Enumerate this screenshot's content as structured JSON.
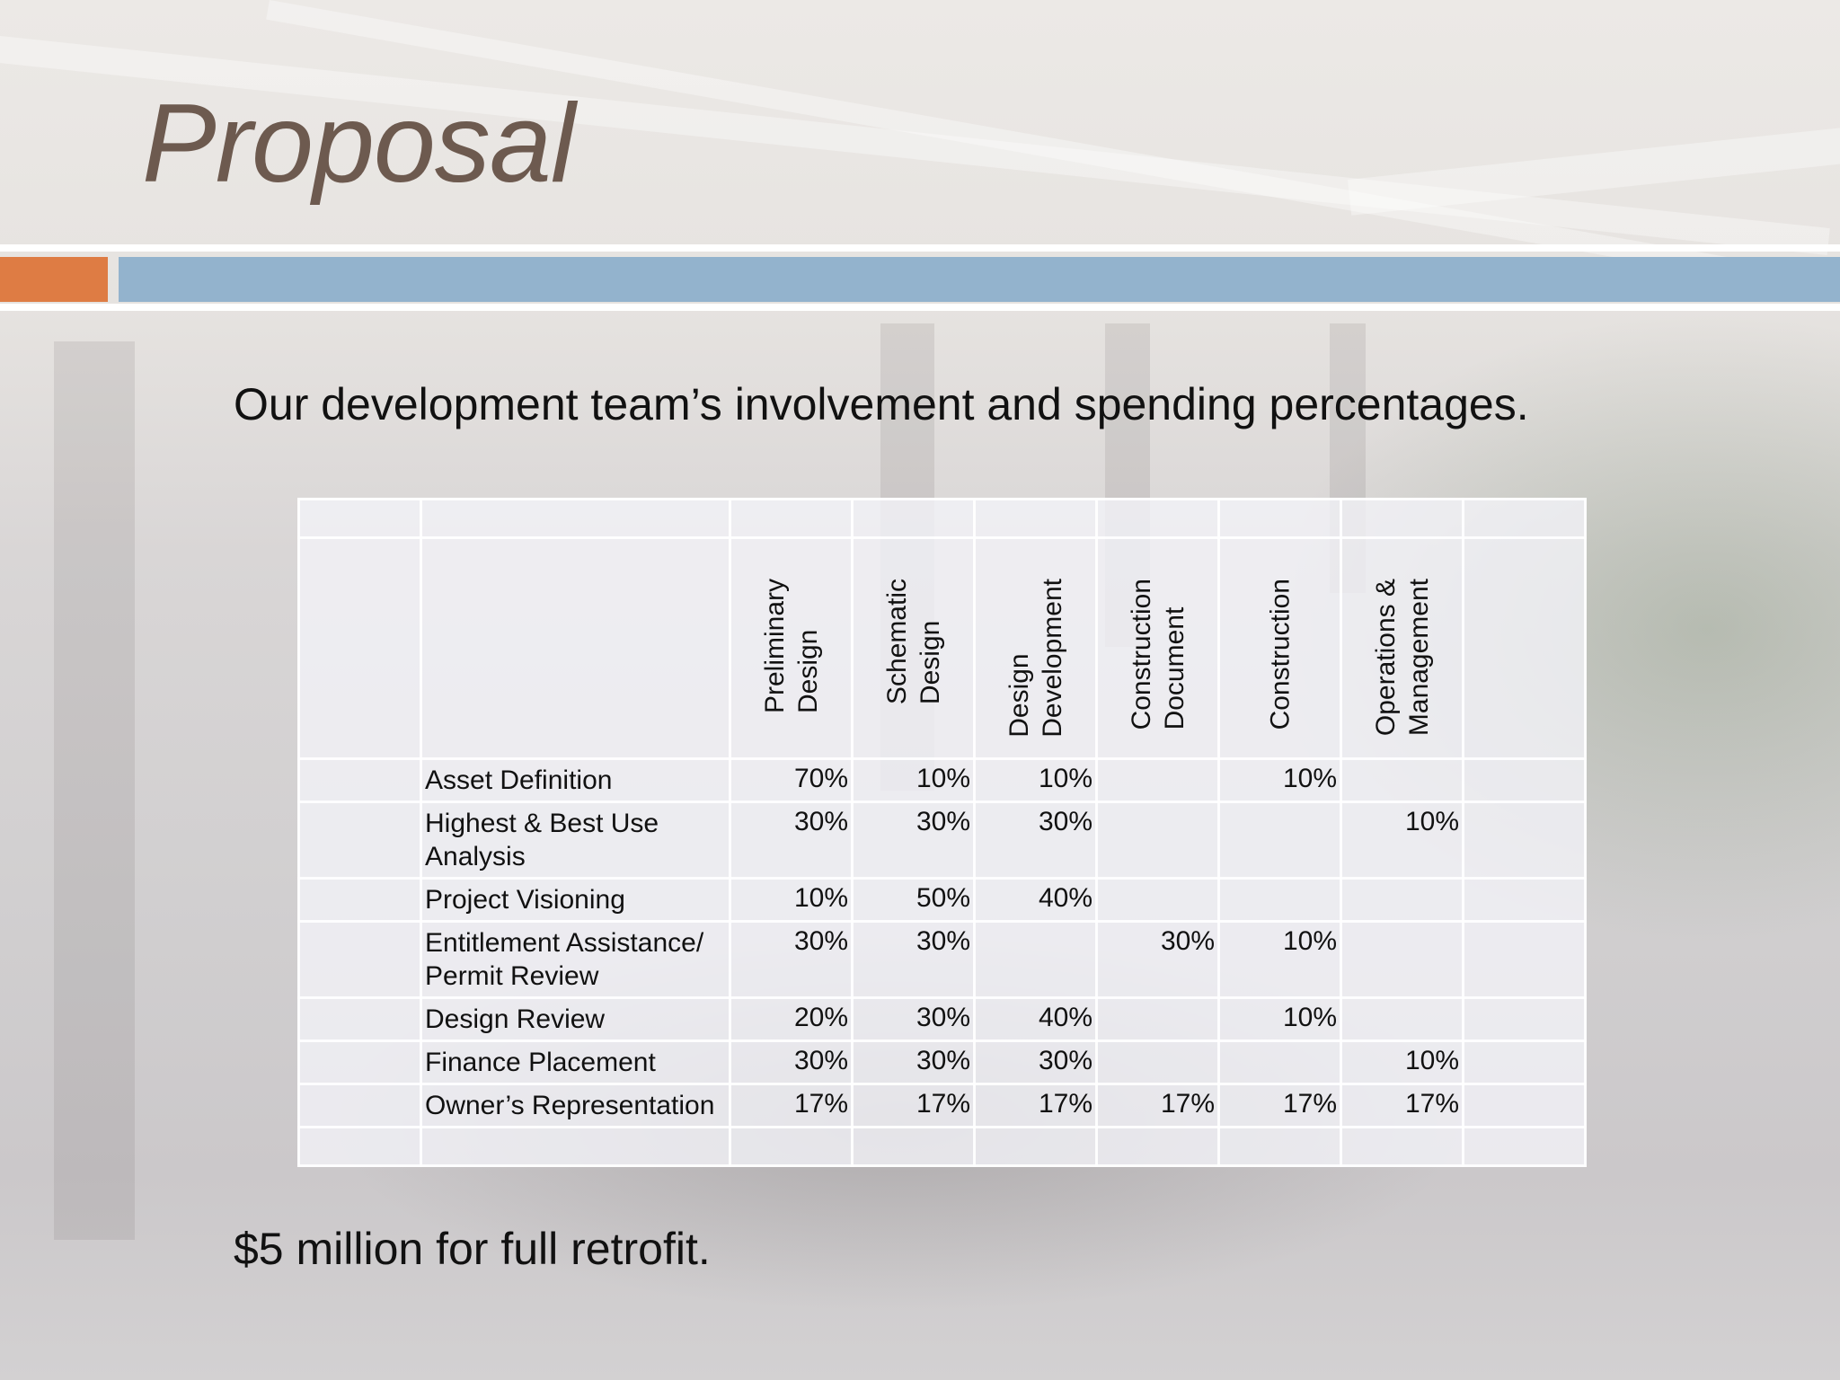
{
  "slide": {
    "title": "Proposal",
    "subtitle": "Our development team’s involvement and spending percentages.",
    "footer": "$5 million for full retrofit."
  },
  "table": {
    "columns": [
      "Preliminary\nDesign",
      "Schematic\nDesign",
      "Design\nDevelopment",
      "Construction\nDocument",
      "Construction",
      "Operations &\nManagement"
    ],
    "rows": [
      {
        "label": "Asset Definition",
        "values": [
          "70%",
          "10%",
          "10%",
          "",
          "10%",
          ""
        ]
      },
      {
        "label": "Highest & Best Use Analysis",
        "values": [
          "30%",
          "30%",
          "30%",
          "",
          "",
          "10%"
        ]
      },
      {
        "label": "Project Visioning",
        "values": [
          "10%",
          "50%",
          "40%",
          "",
          "",
          ""
        ]
      },
      {
        "label": "Entitlement Assistance/ Permit Review",
        "values": [
          "30%",
          "30%",
          "",
          "30%",
          "10%",
          ""
        ]
      },
      {
        "label": "Design Review",
        "values": [
          "20%",
          "30%",
          "40%",
          "",
          "10%",
          ""
        ]
      },
      {
        "label": "Finance Placement",
        "values": [
          "30%",
          "30%",
          "30%",
          "",
          "",
          "10%"
        ]
      },
      {
        "label": "Owner’s Representation",
        "values": [
          "17%",
          "17%",
          "17%",
          "17%",
          "17%",
          "17%"
        ]
      }
    ]
  },
  "colors": {
    "title": "#6d5a4f",
    "accent_orange": "#de7c44",
    "accent_blue": "#93b3cd"
  }
}
